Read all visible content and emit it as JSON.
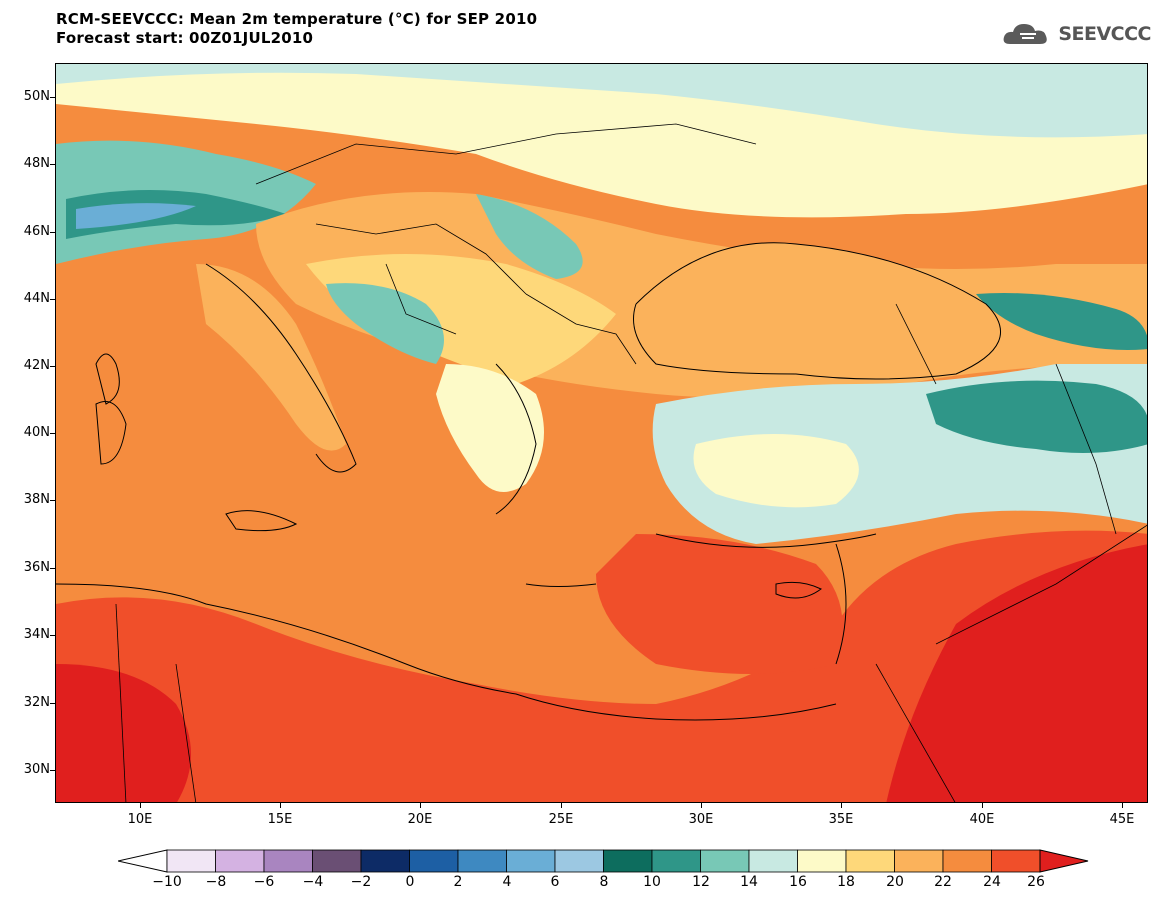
{
  "title": {
    "line1": "RCM-SEEVCCC: Mean 2m temperature (°C) for SEP 2010",
    "line2": "Forecast start: 00Z01JUL2010"
  },
  "brand": {
    "name": "SEEVCCC",
    "icon": "cloud-logo-icon"
  },
  "map": {
    "lat_labels": [
      "50N",
      "48N",
      "46N",
      "44N",
      "42N",
      "40N",
      "38N",
      "36N",
      "34N",
      "32N",
      "30N"
    ],
    "lon_labels": [
      "10E",
      "15E",
      "20E",
      "25E",
      "30E",
      "35E",
      "40E",
      "45E"
    ]
  },
  "colorbar": {
    "tick_labels": [
      "−10",
      "−8",
      "−6",
      "−4",
      "−2",
      "0",
      "2",
      "4",
      "6",
      "8",
      "10",
      "12",
      "14",
      "16",
      "18",
      "20",
      "22",
      "24",
      "26"
    ],
    "colors": [
      "#ffffff",
      "#f1e6f5",
      "#d4b2e2",
      "#a985c0",
      "#6a4f74",
      "#0d2b66",
      "#1d5fa4",
      "#3e89c1",
      "#6aaed6",
      "#9cc8e2",
      "#0d6d5e",
      "#2f9688",
      "#78c8b6",
      "#c8e9e2",
      "#fdfac8",
      "#fed87a",
      "#fbb25b",
      "#f58c3e",
      "#f04f2a",
      "#e01f1e"
    ]
  }
}
